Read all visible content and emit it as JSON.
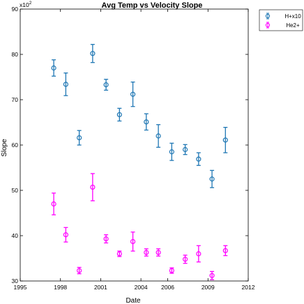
{
  "chart_data": {
    "type": "scatter",
    "title": "Avg Temp vs Velocity Slope",
    "xlabel": "Date",
    "ylabel": "Slope",
    "y_exponent_label": "x10",
    "y_exponent_power": "2",
    "xlim": [
      1995,
      2012
    ],
    "ylim": [
      30,
      90
    ],
    "x_ticks": [
      1995,
      1998,
      2001,
      2004,
      2006,
      2009,
      2012
    ],
    "y_ticks": [
      30,
      40,
      50,
      60,
      70,
      80,
      90
    ],
    "grid": false,
    "legend_position": "top-right",
    "series": [
      {
        "name": "H+x10",
        "color": "#1f77b4",
        "marker": "circle",
        "points": [
          {
            "x": "1997.5",
            "y": 77.0,
            "err": 1.8
          },
          {
            "x": "1998.4",
            "y": 73.4,
            "err": 2.5
          },
          {
            "x": "1999.4",
            "y": 61.6,
            "err": 1.6
          },
          {
            "x": "2000.4",
            "y": 80.2,
            "err": 2.0
          },
          {
            "x": "2001.4",
            "y": 73.3,
            "err": 1.2
          },
          {
            "x": "2002.4",
            "y": 66.7,
            "err": 1.4
          },
          {
            "x": "2003.4",
            "y": 71.2,
            "err": 2.7
          },
          {
            "x": "2004.4",
            "y": 65.1,
            "err": 1.8
          },
          {
            "x": "2005.3",
            "y": 62.0,
            "err": 2.5
          },
          {
            "x": "2006.3",
            "y": 58.5,
            "err": 1.9
          },
          {
            "x": "2007.3",
            "y": 59.0,
            "err": 1.1
          },
          {
            "x": "2008.3",
            "y": 56.9,
            "err": 1.4
          },
          {
            "x": "2009.3",
            "y": 52.5,
            "err": 1.9
          },
          {
            "x": "2010.3",
            "y": 61.1,
            "err": 2.8
          }
        ]
      },
      {
        "name": "He2+",
        "color": "#ff00ff",
        "marker": "circle",
        "points": [
          {
            "x": "1997.5",
            "y": 47.0,
            "err": 2.4
          },
          {
            "x": "1998.4",
            "y": 40.2,
            "err": 1.6
          },
          {
            "x": "1999.4",
            "y": 32.3,
            "err": 0.7
          },
          {
            "x": "2000.4",
            "y": 50.7,
            "err": 3.0
          },
          {
            "x": "2001.4",
            "y": 39.3,
            "err": 0.9
          },
          {
            "x": "2002.4",
            "y": 36.0,
            "err": 0.6
          },
          {
            "x": "2003.4",
            "y": 38.7,
            "err": 2.1
          },
          {
            "x": "2004.4",
            "y": 36.3,
            "err": 0.8
          },
          {
            "x": "2005.3",
            "y": 36.3,
            "err": 0.8
          },
          {
            "x": "2006.3",
            "y": 32.3,
            "err": 0.6
          },
          {
            "x": "2007.3",
            "y": 34.8,
            "err": 0.9
          },
          {
            "x": "2008.3",
            "y": 36.0,
            "err": 1.8
          },
          {
            "x": "2009.3",
            "y": 31.2,
            "err": 0.9
          },
          {
            "x": "2010.3",
            "y": 36.7,
            "err": 1.1
          }
        ]
      }
    ]
  }
}
